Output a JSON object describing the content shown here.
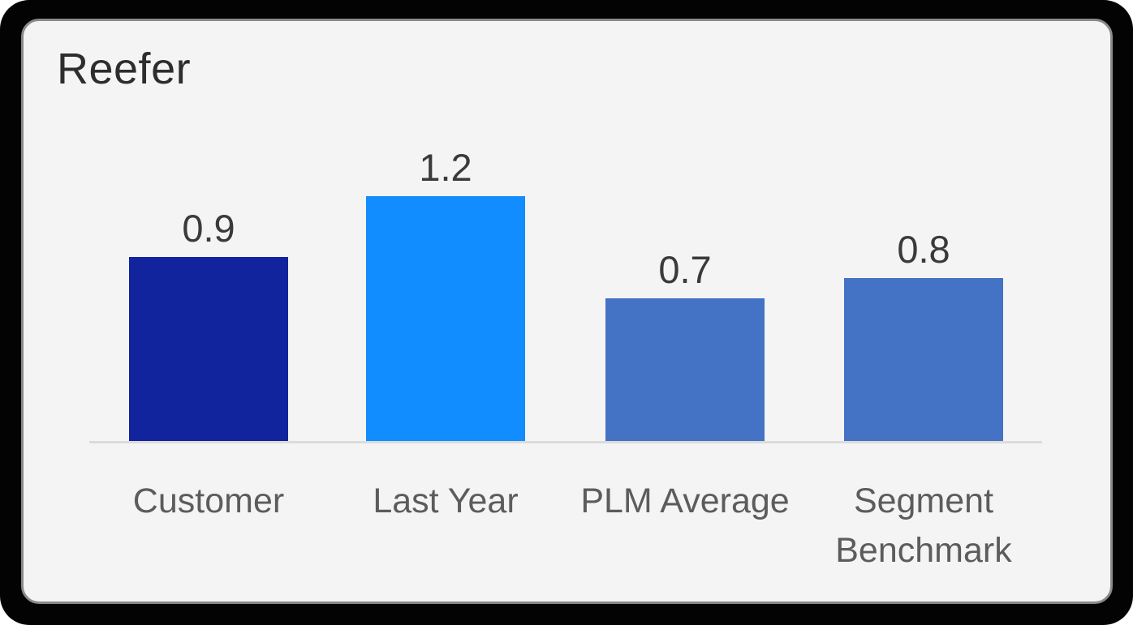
{
  "card": {
    "title": "Reefer"
  },
  "chart_data": {
    "type": "bar",
    "title": "Reefer",
    "categories": [
      "Customer",
      "Last Year",
      "PLM Average",
      "Segment Benchmark"
    ],
    "values": [
      0.9,
      1.2,
      0.7,
      0.8
    ],
    "data_labels": [
      "0.9",
      "1.2",
      "0.7",
      "0.8"
    ],
    "xlabel": "",
    "ylabel": "",
    "ylim": [
      0,
      1.25
    ],
    "grid": false,
    "legend": false,
    "bar_colors": [
      "#12239E",
      "#118DFF",
      "#4472C4",
      "#4472C4"
    ],
    "colors": {
      "title_text": "#2D2D2D",
      "data_label_text": "#3A3A3A",
      "category_label_text": "#5C5C5C",
      "axis_line": "#DBDBDB",
      "card_background": "#F4F4F4",
      "card_border": "#8A8A8A",
      "outer_frame": "#030303"
    }
  }
}
